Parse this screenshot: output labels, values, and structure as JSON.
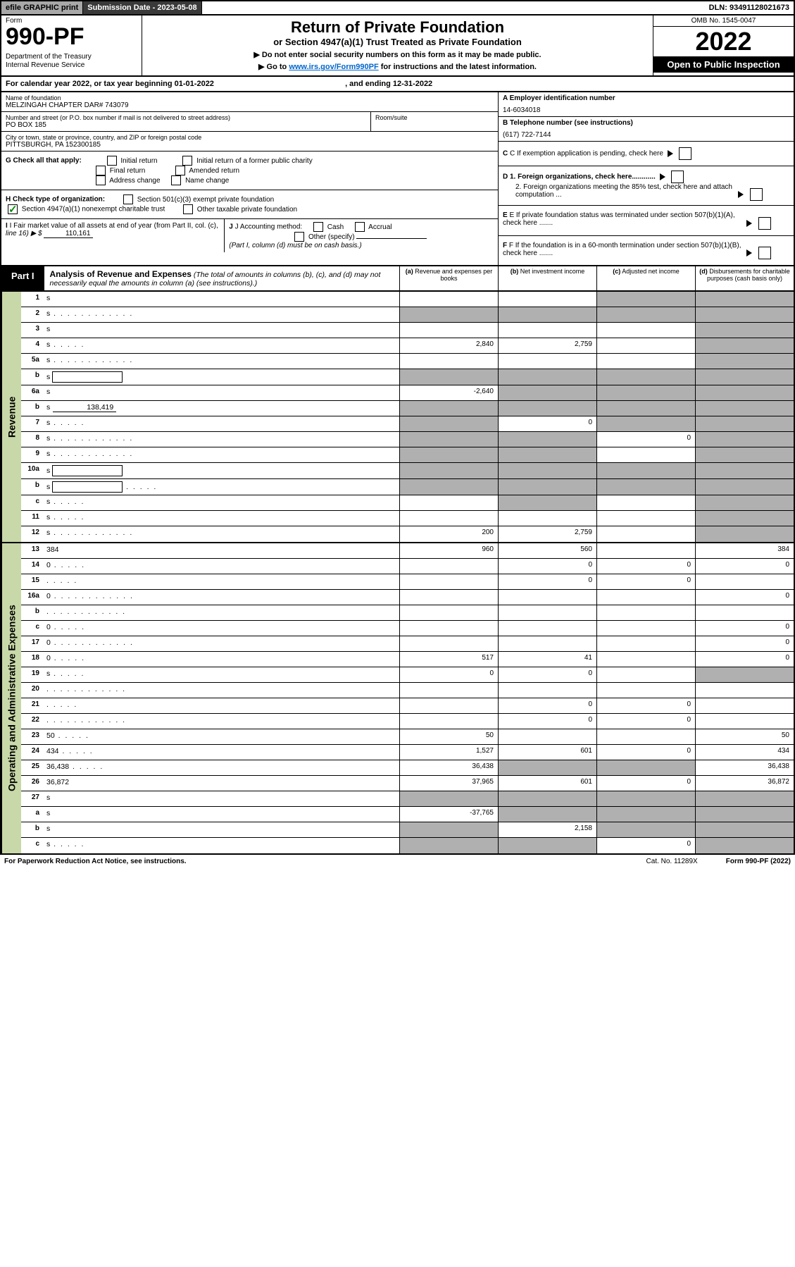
{
  "topbar": {
    "efile": "efile GRAPHIC print",
    "subdate_label": "Submission Date - ",
    "subdate": "2023-05-08",
    "dln_label": "DLN: ",
    "dln": "93491128021673"
  },
  "header": {
    "form_label": "Form",
    "form_num": "990-PF",
    "dept1": "Department of the Treasury",
    "dept2": "Internal Revenue Service",
    "title": "Return of Private Foundation",
    "subtitle": "or Section 4947(a)(1) Trust Treated as Private Foundation",
    "note1": "▶ Do not enter social security numbers on this form as it may be made public.",
    "note2_a": "▶ Go to ",
    "note2_link": "www.irs.gov/Form990PF",
    "note2_b": " for instructions and the latest information.",
    "omb": "OMB No. 1545-0047",
    "year": "2022",
    "open": "Open to Public Inspection"
  },
  "calyear": {
    "prefix": "For calendar year 2022, or tax year beginning ",
    "begin": "01-01-2022",
    "mid": " , and ending ",
    "end": "12-31-2022"
  },
  "info": {
    "name_lbl": "Name of foundation",
    "name": "MELZINGAH CHAPTER DAR# 743079",
    "addr_lbl": "Number and street (or P.O. box number if mail is not delivered to street address)",
    "addr": "PO BOX 185",
    "room_lbl": "Room/suite",
    "city_lbl": "City or town, state or province, country, and ZIP or foreign postal code",
    "city": "PITTSBURGH, PA  152300185",
    "a_lbl": "A Employer identification number",
    "a_val": "14-6034018",
    "b_lbl": "B Telephone number (see instructions)",
    "b_val": "(617) 722-7144",
    "c_lbl": "C If exemption application is pending, check here",
    "d1": "D 1. Foreign organizations, check here............",
    "d2": "2. Foreign organizations meeting the 85% test, check here and attach computation ...",
    "e_lbl": "E  If private foundation status was terminated under section 507(b)(1)(A), check here .......",
    "f_lbl": "F  If the foundation is in a 60-month termination under section 507(b)(1)(B), check here .......",
    "g_lbl": "G Check all that apply:",
    "g_initial": "Initial return",
    "g_initial_former": "Initial return of a former public charity",
    "g_final": "Final return",
    "g_amended": "Amended return",
    "g_address": "Address change",
    "g_name": "Name change",
    "h_lbl": "H Check type of organization:",
    "h_501c3": "Section 501(c)(3) exempt private foundation",
    "h_4947": "Section 4947(a)(1) nonexempt charitable trust",
    "h_other": "Other taxable private foundation",
    "i_lbl": "I Fair market value of all assets at end of year (from Part II, col. (c),",
    "i_line": "line 16) ▶ $",
    "i_val": "110,161",
    "j_lbl": "J Accounting method:",
    "j_cash": "Cash",
    "j_accrual": "Accrual",
    "j_other": "Other (specify)",
    "j_note": "(Part I, column (d) must be on cash basis.)"
  },
  "part1": {
    "tab": "Part I",
    "title": "Analysis of Revenue and Expenses",
    "title_note": " (The total of amounts in columns (b), (c), and (d) may not necessarily equal the amounts in column (a) (see instructions).)",
    "col_a": "(a)   Revenue and expenses per books",
    "col_b": "(b)   Net investment income",
    "col_c": "(c)   Adjusted net income",
    "col_d": "(d)   Disbursements for charitable purposes (cash basis only)"
  },
  "sections": {
    "revenue": "Revenue",
    "opex": "Operating and Administrative Expenses"
  },
  "rows": [
    {
      "n": "1",
      "d": "s",
      "a": "",
      "b": "",
      "c": "s"
    },
    {
      "n": "2",
      "d": "s",
      "dots": true,
      "a": "s",
      "b": "s",
      "c": "s"
    },
    {
      "n": "3",
      "d": "s",
      "a": "",
      "b": "",
      "c": ""
    },
    {
      "n": "4",
      "d": "s",
      "dots": "short",
      "a": "2,840",
      "b": "2,759",
      "c": ""
    },
    {
      "n": "5a",
      "d": "s",
      "dots": true,
      "a": "",
      "b": "",
      "c": ""
    },
    {
      "n": "b",
      "d": "s",
      "inline_box": true,
      "a": "s",
      "b": "s",
      "c": "s"
    },
    {
      "n": "6a",
      "d": "s",
      "a": "-2,640",
      "b": "s",
      "c": "s"
    },
    {
      "n": "b",
      "d": "s",
      "inline_amt": "138,419",
      "a": "s",
      "b": "s",
      "c": "s"
    },
    {
      "n": "7",
      "d": "s",
      "dots": "short",
      "a": "s",
      "b": "0",
      "c": "s"
    },
    {
      "n": "8",
      "d": "s",
      "dots": true,
      "a": "s",
      "b": "s",
      "c": "0"
    },
    {
      "n": "9",
      "d": "s",
      "dots": true,
      "a": "s",
      "b": "s",
      "c": ""
    },
    {
      "n": "10a",
      "d": "s",
      "inline_box": true,
      "a": "s",
      "b": "s",
      "c": "s"
    },
    {
      "n": "b",
      "d": "s",
      "dots": "short",
      "inline_box": true,
      "a": "s",
      "b": "s",
      "c": "s"
    },
    {
      "n": "c",
      "d": "s",
      "dots": "short",
      "a": "",
      "b": "s",
      "c": ""
    },
    {
      "n": "11",
      "d": "s",
      "dots": "short",
      "a": "",
      "b": "",
      "c": ""
    },
    {
      "n": "12",
      "d": "s",
      "dots": true,
      "a": "200",
      "b": "2,759",
      "c": ""
    }
  ],
  "oprows": [
    {
      "n": "13",
      "d": "384",
      "a": "960",
      "b": "560",
      "c": ""
    },
    {
      "n": "14",
      "d": "0",
      "dots": "short",
      "a": "",
      "b": "0",
      "c": "0"
    },
    {
      "n": "15",
      "d": "",
      "dots": "short",
      "a": "",
      "b": "0",
      "c": "0"
    },
    {
      "n": "16a",
      "d": "0",
      "dots": true,
      "a": "",
      "b": "",
      "c": ""
    },
    {
      "n": "b",
      "d": "",
      "dots": true,
      "a": "",
      "b": "",
      "c": ""
    },
    {
      "n": "c",
      "d": "0",
      "dots": "short",
      "a": "",
      "b": "",
      "c": ""
    },
    {
      "n": "17",
      "d": "0",
      "dots": true,
      "a": "",
      "b": "",
      "c": ""
    },
    {
      "n": "18",
      "d": "0",
      "dots": "short",
      "a": "517",
      "b": "41",
      "c": ""
    },
    {
      "n": "19",
      "d": "s",
      "dots": "short",
      "a": "0",
      "b": "0",
      "c": ""
    },
    {
      "n": "20",
      "d": "",
      "dots": true,
      "a": "",
      "b": "",
      "c": ""
    },
    {
      "n": "21",
      "d": "",
      "dots": "short",
      "a": "",
      "b": "0",
      "c": "0"
    },
    {
      "n": "22",
      "d": "",
      "dots": true,
      "a": "",
      "b": "0",
      "c": "0"
    },
    {
      "n": "23",
      "d": "50",
      "dots": "short",
      "a": "50",
      "b": "",
      "c": ""
    },
    {
      "n": "24",
      "d": "434",
      "dots": "short",
      "a": "1,527",
      "b": "601",
      "c": "0"
    },
    {
      "n": "25",
      "d": "36,438",
      "dots": "short",
      "a": "36,438",
      "b": "s",
      "c": "s"
    },
    {
      "n": "26",
      "d": "36,872",
      "a": "37,965",
      "b": "601",
      "c": "0"
    },
    {
      "n": "27",
      "d": "s",
      "a": "s",
      "b": "s",
      "c": "s"
    },
    {
      "n": "a",
      "d": "s",
      "a": "-37,765",
      "b": "s",
      "c": "s"
    },
    {
      "n": "b",
      "d": "s",
      "a": "s",
      "b": "2,158",
      "c": "s"
    },
    {
      "n": "c",
      "d": "s",
      "dots": "short",
      "a": "s",
      "b": "s",
      "c": "0"
    }
  ],
  "footer": {
    "left": "For Paperwork Reduction Act Notice, see instructions.",
    "mid": "Cat. No. 11289X",
    "right": "Form 990-PF (2022)"
  }
}
